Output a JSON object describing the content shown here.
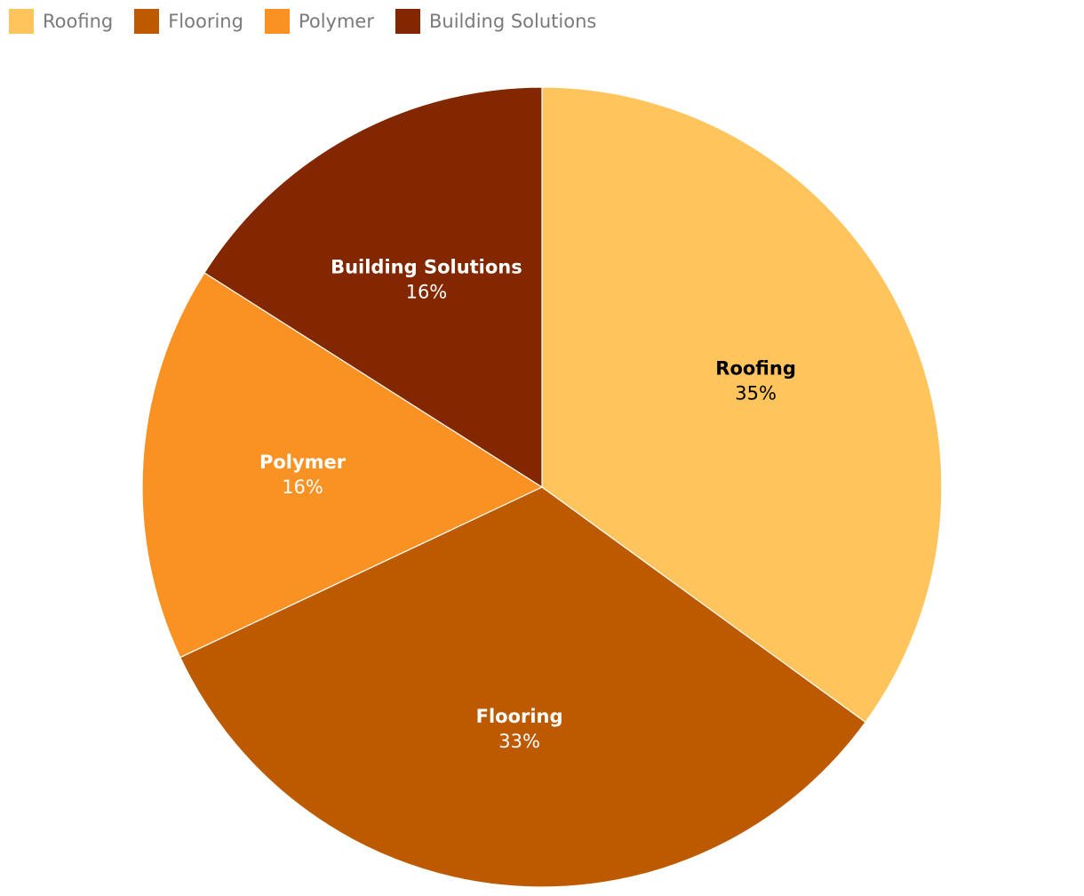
{
  "chart_data": {
    "type": "pie",
    "title": "",
    "categories": [
      "Roofing",
      "Flooring",
      "Polymer",
      "Building Solutions"
    ],
    "values": [
      35,
      33,
      16,
      16
    ],
    "percent_labels": [
      "35%",
      "33%",
      "16%",
      "16%"
    ],
    "colors": [
      "#FFC45C",
      "#BD5A00",
      "#FA9123",
      "#832700"
    ],
    "label_colors": [
      "#000000",
      "#ffffff",
      "#ffffff",
      "#ffffff"
    ],
    "start_angle": "12 o'clock",
    "direction": "clockwise",
    "legend_position": "top-left"
  }
}
